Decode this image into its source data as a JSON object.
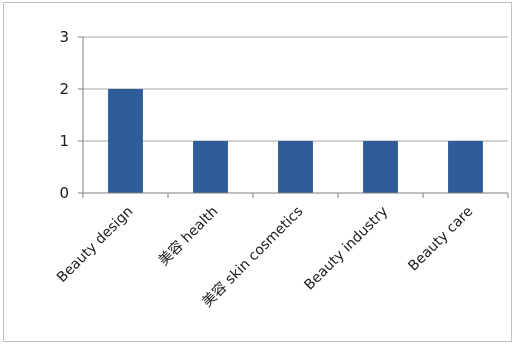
{
  "chart_data": {
    "type": "bar",
    "title": "",
    "xlabel": "",
    "ylabel": "",
    "categories": [
      "Beauty design",
      "美容 health",
      "美容 skin cosmetics",
      "Beauty industry",
      "Beauty care"
    ],
    "values": [
      2,
      1,
      1,
      1,
      1
    ],
    "ylim": [
      0,
      3
    ],
    "yticks": [
      "0",
      "1",
      "2",
      "3"
    ],
    "grid": true,
    "legend": "none",
    "bar_color": "#2e5c99",
    "grid_color": "#a6a6a6"
  }
}
